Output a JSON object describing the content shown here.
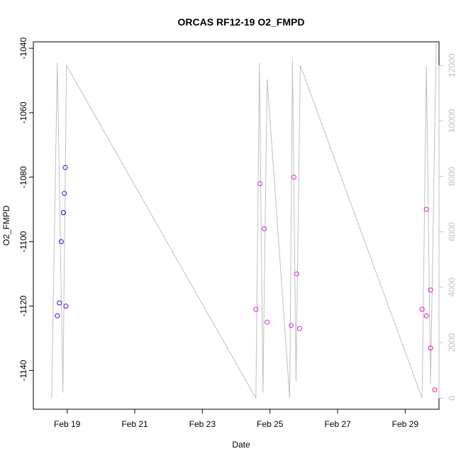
{
  "chart_data": {
    "type": "scatter",
    "title": "ORCAS RF12-19 O2_FMPD",
    "xlabel": "Date",
    "ylabel": "O2_FMPD",
    "x_date_start": "2016-02-18",
    "xlim": [
      "2016-02-18",
      "2016-03-01"
    ],
    "x_ticks": [
      {
        "date": "2016-02-19",
        "label": "Feb 19"
      },
      {
        "date": "2016-02-21",
        "label": "Feb 21"
      },
      {
        "date": "2016-02-23",
        "label": "Feb 23"
      },
      {
        "date": "2016-02-25",
        "label": "Feb 25"
      },
      {
        "date": "2016-02-27",
        "label": "Feb 27"
      },
      {
        "date": "2016-02-29",
        "label": "Feb 29"
      }
    ],
    "ylim": [
      -1152,
      -1038
    ],
    "y_ticks": [
      -1140,
      -1120,
      -1100,
      -1080,
      -1060,
      -1040
    ],
    "y2lim": [
      -400,
      12850
    ],
    "y2_ticks": [
      0,
      2000,
      4000,
      6000,
      8000,
      10000,
      12000
    ],
    "colors": {
      "rf12": "#3300ff",
      "rf13": "#5a00e8",
      "rf15": "#cc22ee",
      "rf16": "#dd22dd",
      "rf18": "#ee11cc",
      "rf19": "#ff00aa",
      "altitude": "#c0c0c0",
      "frame": "#000000"
    },
    "series": [
      {
        "color_key": "rf12",
        "x": [
          "2016-02-18T17:00",
          "2016-02-18T18:30",
          "2016-02-18T19:50",
          "2016-02-18T21:20"
        ],
        "y": [
          -1123,
          -1119,
          -1100,
          -1091
        ]
      },
      {
        "color_key": "rf13",
        "x": [
          "2016-02-18T21:20",
          "2016-02-18T22:00",
          "2016-02-18T22:40",
          "2016-02-18T23:10"
        ],
        "y": [
          -1091,
          -1085,
          -1077,
          -1120
        ]
      },
      {
        "color_key": "rf15",
        "x": [
          "2016-02-24T14:00",
          "2016-02-24T17:00",
          "2016-02-24T20:00",
          "2016-02-24T22:00"
        ],
        "y": [
          -1121,
          -1082,
          -1096,
          -1125
        ]
      },
      {
        "color_key": "rf16",
        "x": [
          "2016-02-25T15:00",
          "2016-02-25T17:00",
          "2016-02-25T19:00",
          "2016-02-25T21:00"
        ],
        "y": [
          -1126,
          -1080,
          -1110,
          -1127
        ]
      },
      {
        "color_key": "rf18",
        "x": [
          "2016-02-29T12:00",
          "2016-02-29T15:00",
          "2016-02-29T18:00"
        ],
        "y": [
          -1121,
          -1090,
          -1115
        ]
      },
      {
        "color_key": "rf19",
        "x": [
          "2016-02-29T15:00",
          "2016-02-29T18:00",
          "2016-02-29T21:00"
        ],
        "y": [
          -1123,
          -1133,
          -1146
        ]
      }
    ],
    "altitude_line": {
      "color_key": "altitude",
      "x": [
        "2016-02-18T13:00",
        "2016-02-18T17:00",
        "2016-02-18T21:00",
        "2016-02-18T23:30",
        "2016-02-24T14:00",
        "2016-02-24T16:30",
        "2016-02-24T19:00",
        "2016-02-24T22:00",
        "2016-02-25T14:00",
        "2016-02-25T16:00",
        "2016-02-25T18:30",
        "2016-02-25T21:30",
        "2016-02-29T12:00",
        "2016-02-29T15:00",
        "2016-02-29T18:00",
        "2016-02-29T22:00"
      ],
      "y2": [
        0,
        12100,
        200,
        12000,
        0,
        12100,
        200,
        11500,
        0,
        12200,
        600,
        12000,
        0,
        12000,
        500,
        12800
      ]
    }
  }
}
